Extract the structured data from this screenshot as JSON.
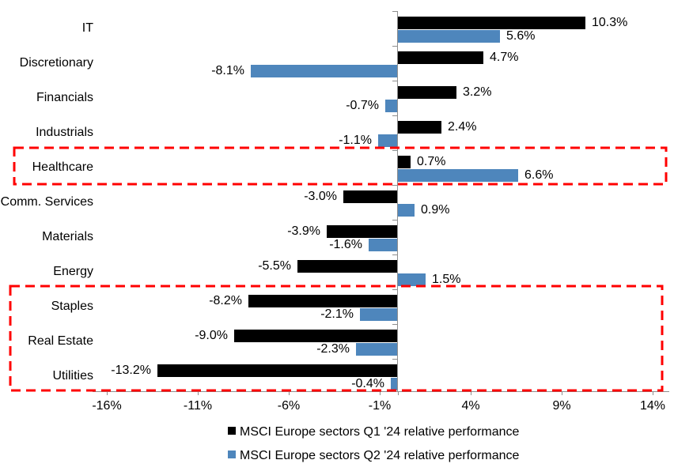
{
  "chart_data": {
    "type": "bar",
    "orientation": "horizontal",
    "title": "",
    "xlabel": "",
    "ylabel": "",
    "grid": false,
    "categories": [
      "IT",
      "Discretionary",
      "Financials",
      "Industrials",
      "Healthcare",
      "Comm. Services",
      "Materials",
      "Energy",
      "Staples",
      "Real Estate",
      "Utilities"
    ],
    "series": [
      {
        "name": "MSCI Europe sectors Q1 '24 relative performance",
        "color": "#000000",
        "values": [
          10.3,
          4.7,
          3.2,
          2.4,
          0.7,
          -3.0,
          -3.9,
          -5.5,
          -8.2,
          -9.0,
          -13.2
        ],
        "labels": [
          "10.3%",
          "4.7%",
          "3.2%",
          "2.4%",
          "0.7%",
          "-3.0%",
          "-3.9%",
          "-5.5%",
          "-8.2%",
          "-9.0%",
          "-13.2%"
        ]
      },
      {
        "name": "MSCI Europe sectors Q2 '24 relative performance",
        "color": "#4E86BC",
        "values": [
          5.6,
          -8.1,
          -0.7,
          -1.1,
          6.6,
          0.9,
          -1.6,
          1.5,
          -2.1,
          -2.3,
          -0.4
        ],
        "labels": [
          "5.6%",
          "-8.1%",
          "-0.7%",
          "-1.1%",
          "6.6%",
          "0.9%",
          "-1.6%",
          "1.5%",
          "-2.1%",
          "-2.3%",
          "-0.4%"
        ]
      }
    ],
    "x_axis": {
      "tick_labels": [
        "-16%",
        "-11%",
        "-6%",
        "-1%",
        "4%",
        "9%",
        "14%"
      ],
      "tick_values": [
        -16,
        -11,
        -6,
        -1,
        4,
        9,
        14
      ],
      "zero_tick": 0,
      "axis_color": "#8E8E8E"
    },
    "legend_position": "bottom",
    "highlights": [
      {
        "name": "healthcare-highlight",
        "categories": [
          "Healthcare"
        ],
        "color": "#FF0000",
        "style": "dashed"
      },
      {
        "name": "defensives-highlight",
        "categories": [
          "Staples",
          "Real Estate",
          "Utilities"
        ],
        "color": "#FF0000",
        "style": "dashed"
      }
    ]
  }
}
